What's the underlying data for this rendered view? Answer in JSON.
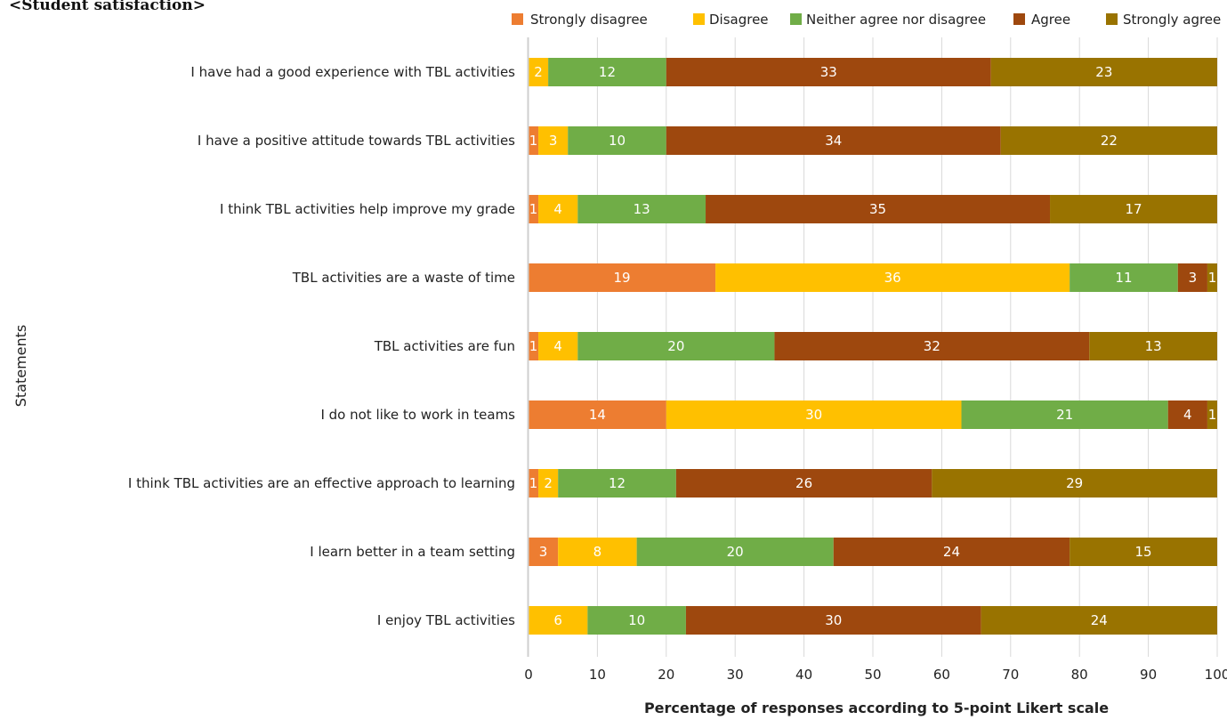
{
  "chart_data": {
    "type": "bar",
    "orientation": "horizontal",
    "stacked": true,
    "title": "<Student satisfaction>",
    "xlabel": "Percentage of responses according to 5-point Likert scale",
    "ylabel": "Statements",
    "xlim": [
      0,
      100
    ],
    "x_ticks": [
      "0",
      "10",
      "20",
      "30",
      "40",
      "50",
      "60",
      "70",
      "80",
      "90",
      "100"
    ],
    "grid": "vertical",
    "legend_position": "top-right",
    "categories": [
      "I have had a good experience with TBL activities",
      "I have a positive attitude towards TBL activities",
      "I think TBL activities help improve my grade",
      "TBL activities are a waste of time",
      "TBL activities are fun",
      "I do not like to work in teams",
      "I think TBL activities are an effective approach to learning",
      "I learn better in a team setting",
      "I enjoy TBL activities"
    ],
    "series": [
      {
        "name": "Strongly disagree",
        "color": "#ED7D31",
        "values": [
          0,
          1,
          1,
          19,
          1,
          14,
          1,
          3,
          0
        ]
      },
      {
        "name": "Disagree",
        "color": "#FFC000",
        "values": [
          2,
          3,
          4,
          36,
          4,
          30,
          2,
          8,
          6
        ]
      },
      {
        "name": "Neither agree nor disagree",
        "color": "#70AD47",
        "values": [
          12,
          10,
          13,
          11,
          20,
          21,
          12,
          20,
          10
        ]
      },
      {
        "name": "Agree",
        "color": "#9E480E",
        "values": [
          33,
          34,
          35,
          3,
          32,
          4,
          26,
          24,
          30
        ]
      },
      {
        "name": "Strongly agree",
        "color": "#997300",
        "values": [
          23,
          22,
          17,
          1,
          13,
          1,
          29,
          15,
          24
        ]
      }
    ]
  }
}
